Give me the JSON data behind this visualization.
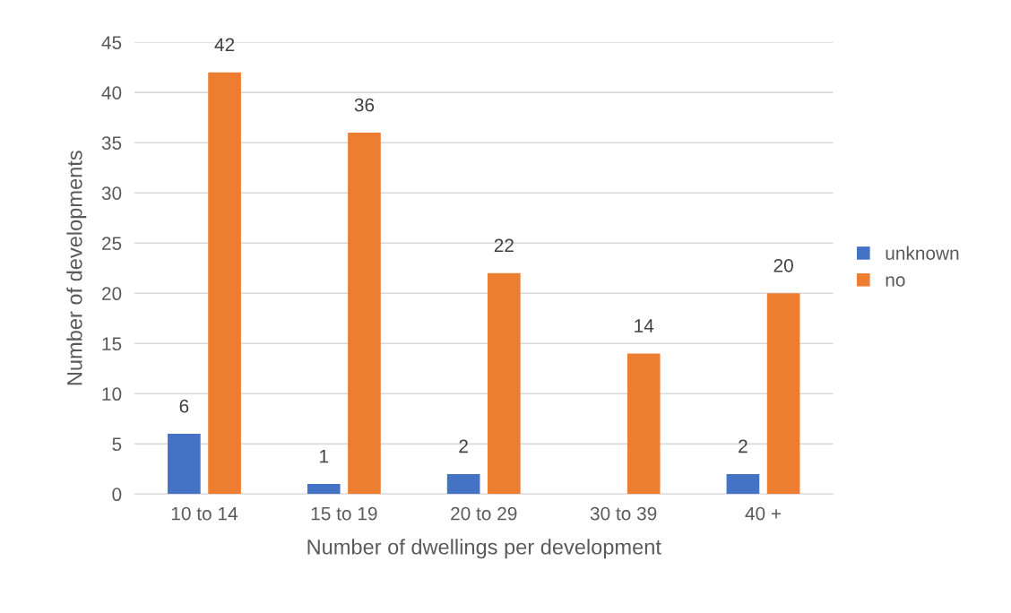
{
  "chart_data": {
    "type": "bar",
    "xlabel": "Number of dwellings per development",
    "ylabel": "Number of developments",
    "categories": [
      "10 to 14",
      "15 to 19",
      "20 to 29",
      "30 to 39",
      "40 +"
    ],
    "series": [
      {
        "name": "unknown",
        "color": "#4472c4",
        "values": [
          6,
          1,
          2,
          null,
          2
        ]
      },
      {
        "name": "no",
        "color": "#ed7d31",
        "values": [
          42,
          36,
          22,
          14,
          20
        ]
      }
    ],
    "ylim": [
      0,
      45
    ],
    "yticks": [
      0,
      5,
      10,
      15,
      20,
      25,
      30,
      35,
      40,
      45
    ],
    "grid": "y",
    "legend": "right",
    "data_labels": true
  }
}
